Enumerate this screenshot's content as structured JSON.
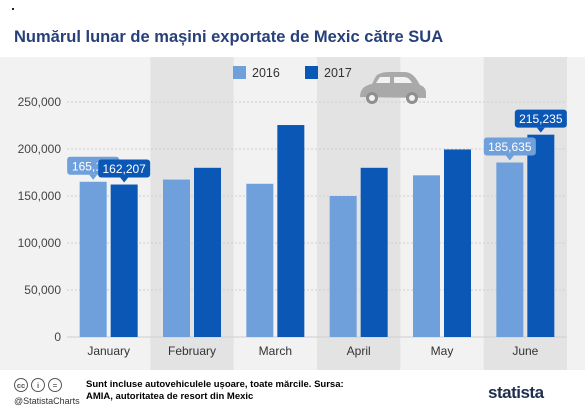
{
  "title": "Numărul lunar de mașini exportate de Mexic către SUA",
  "colors": {
    "s2016": "#6fa0dc",
    "s2017": "#0a57b5",
    "title": "#28407a",
    "band": "#e3e3e3",
    "grid": "#cfcfcf"
  },
  "chart_data": {
    "type": "bar",
    "categories": [
      "January",
      "February",
      "March",
      "April",
      "May",
      "June"
    ],
    "series": [
      {
        "name": "2016",
        "values": [
          165119,
          167500,
          163000,
          150000,
          172000,
          185635
        ]
      },
      {
        "name": "2017",
        "values": [
          162207,
          180000,
          225500,
          180000,
          199500,
          215235
        ]
      }
    ],
    "data_labels": [
      {
        "series": 0,
        "index": 0,
        "text": "165,119"
      },
      {
        "series": 1,
        "index": 0,
        "text": "162,207"
      },
      {
        "series": 0,
        "index": 5,
        "text": "185,635"
      },
      {
        "series": 1,
        "index": 5,
        "text": "215,235"
      }
    ],
    "yticks": [
      0,
      50000,
      100000,
      150000,
      200000,
      250000
    ],
    "ytick_labels": [
      "0",
      "50,000",
      "100,000",
      "150,000",
      "200,000",
      "250,000"
    ],
    "ylim": [
      0,
      250000
    ],
    "legend_position": "top-center",
    "grid": true
  },
  "footer": {
    "credit": "@StatistaCharts",
    "source": "Sunt incluse autovehiculele ușoare, toate mărcile. Sursa: AMIA, autoritatea de resort din Mexic",
    "brand": "statista",
    "icons": [
      "cc-icon",
      "person-icon",
      "equals-icon"
    ]
  }
}
